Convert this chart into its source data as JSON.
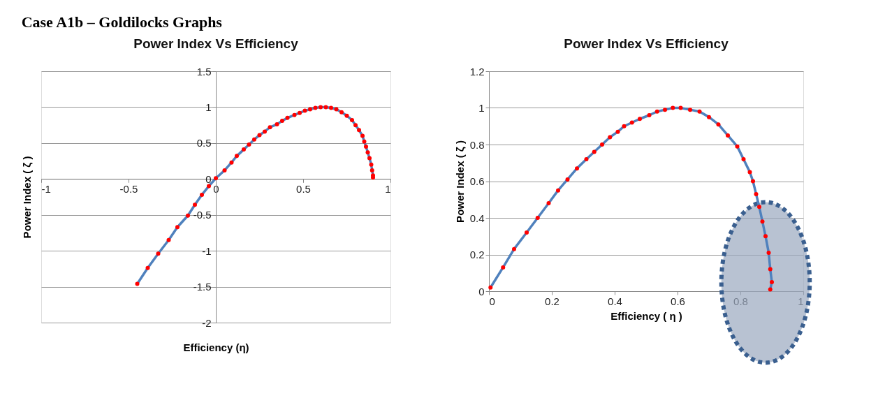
{
  "chart_data": [
    {
      "type": "line",
      "title": "Power Index Vs Efficiency",
      "xlabel": "Efficiency (η)",
      "ylabel": "Power Index ( ζ )",
      "annotations": [
        "Case A1b – Goldilocks  Graphs"
      ],
      "xlim": [
        -1,
        1
      ],
      "ylim": [
        -2,
        1.5
      ],
      "xticks": [
        -1,
        -0.5,
        0,
        0.5,
        1
      ],
      "yticks": [
        -2,
        -1.5,
        -1,
        -0.5,
        0,
        0.5,
        1,
        1.5
      ],
      "grid": "y",
      "marker": "circle",
      "series": [
        {
          "color": "#4f81bd",
          "x": [
            -0.45,
            -0.39,
            -0.33,
            -0.27,
            -0.22,
            -0.16,
            -0.12,
            -0.08,
            -0.04,
            0,
            0.05,
            0.09,
            0.12,
            0.16,
            0.19,
            0.22,
            0.25,
            0.28,
            0.31,
            0.35,
            0.38,
            0.41,
            0.45,
            0.48,
            0.51,
            0.54,
            0.57,
            0.6,
            0.63,
            0.66,
            0.69,
            0.72,
            0.75,
            0.78,
            0.8,
            0.82,
            0.84,
            0.85,
            0.86,
            0.87,
            0.88,
            0.89,
            0.895,
            0.9,
            0.9
          ],
          "values": [
            -1.46,
            -1.24,
            -1.04,
            -0.85,
            -0.67,
            -0.51,
            -0.36,
            -0.22,
            -0.1,
            0.01,
            0.12,
            0.23,
            0.32,
            0.41,
            0.48,
            0.55,
            0.61,
            0.66,
            0.72,
            0.76,
            0.81,
            0.85,
            0.89,
            0.92,
            0.95,
            0.97,
            0.99,
            1.0,
            1.0,
            0.99,
            0.97,
            0.93,
            0.88,
            0.82,
            0.75,
            0.68,
            0.6,
            0.52,
            0.45,
            0.37,
            0.29,
            0.2,
            0.12,
            0.05,
            0.02
          ],
          "colors": [
            "#ff0000",
            "#ff0000",
            "#ff0000",
            "#ff0000",
            "#ff0000",
            "#ff0000",
            "#ff0000",
            "#ff0000",
            "#ff0000",
            "#ff0000",
            "#ff0000",
            "#ff0000",
            "#ff0000",
            "#ff0000",
            "#ff0000",
            "#ff0000",
            "#ff0000",
            "#ff0000",
            "#ff0000",
            "#ff0000",
            "#ff0000",
            "#ff0000",
            "#ff0000",
            "#ff0000",
            "#ff0000",
            "#ff0000",
            "#ff0000",
            "#ff0000",
            "#ff0000",
            "#ff0000",
            "#ff0000",
            "#ff0000",
            "#ff0000",
            "#ff0000",
            "#ff0000",
            "#ff0000",
            "#ff0000",
            "#ff0000",
            "#ff0000",
            "#ff0000",
            "#ff0000",
            "#ff0000",
            "#ff0000",
            "#ff0000",
            "#ff0000"
          ]
        }
      ]
    },
    {
      "type": "line",
      "title": "Power Index Vs Efficiency",
      "xlabel": "Efficiency ( η )",
      "ylabel": "Power Index ( ζ )",
      "xlim": [
        0,
        1
      ],
      "ylim": [
        0,
        1.2
      ],
      "xticks": [
        0,
        0.2,
        0.4,
        0.6,
        0.8,
        1
      ],
      "yticks": [
        0,
        0.2,
        0.4,
        0.6,
        0.8,
        1,
        1.2
      ],
      "grid": "y",
      "marker": "circle",
      "series": [
        {
          "color": "#4f81bd",
          "x": [
            0.005,
            0.045,
            0.08,
            0.12,
            0.155,
            0.19,
            0.22,
            0.25,
            0.28,
            0.31,
            0.335,
            0.36,
            0.385,
            0.41,
            0.43,
            0.455,
            0.48,
            0.51,
            0.535,
            0.56,
            0.585,
            0.61,
            0.64,
            0.67,
            0.7,
            0.73,
            0.76,
            0.79,
            0.81,
            0.83,
            0.84,
            0.85,
            0.86,
            0.87,
            0.88,
            0.89,
            0.895,
            0.9,
            0.895
          ],
          "values": [
            0.02,
            0.13,
            0.23,
            0.32,
            0.4,
            0.48,
            0.55,
            0.61,
            0.67,
            0.72,
            0.76,
            0.8,
            0.84,
            0.87,
            0.9,
            0.92,
            0.94,
            0.96,
            0.98,
            0.99,
            1.0,
            1.0,
            0.99,
            0.98,
            0.95,
            0.91,
            0.85,
            0.79,
            0.72,
            0.65,
            0.6,
            0.53,
            0.46,
            0.38,
            0.3,
            0.21,
            0.12,
            0.05,
            0.01
          ],
          "colors": [
            "#ff0000",
            "#ff0000",
            "#ff0000",
            "#ff0000",
            "#ff0000",
            "#ff0000",
            "#ff0000",
            "#ff0000",
            "#ff0000",
            "#ff0000",
            "#ff0000",
            "#ff0000",
            "#ff0000",
            "#ff0000",
            "#ff0000",
            "#ff0000",
            "#ff0000",
            "#ff0000",
            "#ff0000",
            "#ff0000",
            "#ff0000",
            "#ff0000",
            "#ff0000",
            "#ff0000",
            "#ff0000",
            "#ff0000",
            "#ff0000",
            "#ff0000",
            "#ff0000",
            "#ff0000",
            "#ff0000",
            "#ff0000",
            "#ff0000",
            "#ff0000",
            "#ff0000",
            "#ff0000",
            "#ff0000",
            "#ff0000",
            "#ff0000"
          ]
        }
      ]
    }
  ]
}
